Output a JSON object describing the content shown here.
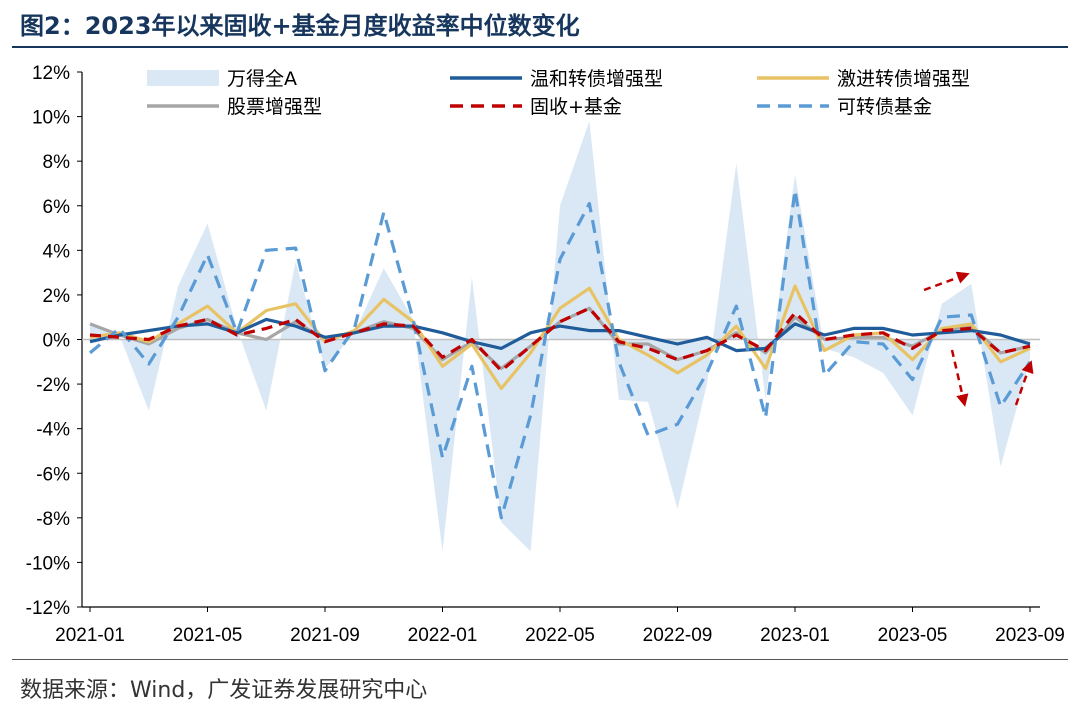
{
  "title": "图2：2023年以来固收+基金月度收益率中位数变化",
  "source": "数据来源：Wind，广发证券发展研究中心",
  "chart_data": {
    "type": "line",
    "title": "图2：2023年以来固收+基金月度收益率中位数变化",
    "xlabel": "",
    "ylabel": "",
    "ylim": [
      -12,
      12
    ],
    "y_ticks": [
      12,
      10,
      8,
      6,
      4,
      2,
      0,
      -2,
      -4,
      -6,
      -8,
      -10,
      -12
    ],
    "y_tick_labels": [
      "12%",
      "10%",
      "8%",
      "6%",
      "4%",
      "2%",
      "0%",
      "-2%",
      "-4%",
      "-6%",
      "-8%",
      "-10%",
      "-12%"
    ],
    "x": [
      "2021-01",
      "2021-02",
      "2021-03",
      "2021-04",
      "2021-05",
      "2021-06",
      "2021-07",
      "2021-08",
      "2021-09",
      "2021-10",
      "2021-11",
      "2021-12",
      "2022-01",
      "2022-02",
      "2022-03",
      "2022-04",
      "2022-05",
      "2022-06",
      "2022-07",
      "2022-08",
      "2022-09",
      "2022-10",
      "2022-11",
      "2022-12",
      "2023-01",
      "2023-02",
      "2023-03",
      "2023-04",
      "2023-05",
      "2023-06",
      "2023-07",
      "2023-08",
      "2023-09"
    ],
    "x_tick_labels": [
      "2021-01",
      "2021-05",
      "2021-09",
      "2022-01",
      "2022-05",
      "2022-09",
      "2023-01",
      "2023-05",
      "2023-09"
    ],
    "grid": false,
    "legend_position": "top",
    "series": [
      {
        "name": "万得全A",
        "style": "area",
        "color": "#dae8f5",
        "values": [
          0.7,
          0.2,
          -3.2,
          2.4,
          5.2,
          0.5,
          -3.2,
          3.5,
          -1.3,
          0.3,
          3.2,
          0.9,
          -9.5,
          2.8,
          -8.2,
          -9.5,
          6.0,
          9.8,
          -2.7,
          -2.8,
          -7.6,
          -2.0,
          7.9,
          -2.7,
          7.4,
          -0.4,
          -0.8,
          -1.5,
          -3.4,
          1.6,
          2.5,
          -5.7,
          -0.9
        ]
      },
      {
        "name": "温和转债增强型",
        "style": "solid",
        "color": "#1f5c99",
        "values": [
          -0.1,
          0.2,
          0.4,
          0.6,
          0.7,
          0.3,
          0.9,
          0.6,
          0.1,
          0.3,
          0.6,
          0.6,
          0.3,
          -0.1,
          -0.4,
          0.3,
          0.6,
          0.4,
          0.4,
          0.1,
          -0.2,
          0.1,
          -0.5,
          -0.4,
          0.7,
          0.2,
          0.5,
          0.5,
          0.2,
          0.3,
          0.4,
          0.2,
          -0.2
        ]
      },
      {
        "name": "激进转债增强型",
        "style": "solid",
        "color": "#e8c365",
        "values": [
          0.1,
          0.3,
          -0.1,
          0.7,
          1.5,
          0.3,
          1.3,
          1.6,
          -0.1,
          0.4,
          1.8,
          0.8,
          -1.2,
          -0.2,
          -2.2,
          -0.6,
          1.4,
          2.3,
          0.0,
          -0.7,
          -1.5,
          -0.7,
          0.6,
          -1.3,
          2.4,
          -0.5,
          0.2,
          0.3,
          -0.9,
          0.5,
          0.7,
          -1.0,
          -0.4
        ]
      },
      {
        "name": "股票增强型",
        "style": "solid",
        "color": "#a6a6a6",
        "values": [
          0.7,
          0.2,
          -0.2,
          0.5,
          0.9,
          0.3,
          0.0,
          0.8,
          0.0,
          0.3,
          0.8,
          0.5,
          -0.9,
          -0.1,
          -1.3,
          -0.3,
          0.8,
          1.4,
          -0.2,
          -0.2,
          -0.9,
          -0.5,
          0.3,
          -0.6,
          1.0,
          0.0,
          0.1,
          0.1,
          -0.3,
          0.4,
          0.6,
          -0.6,
          -0.3
        ]
      },
      {
        "name": "固收+基金",
        "style": "dashed",
        "color": "#c00000",
        "values": [
          0.2,
          0.1,
          0.0,
          0.6,
          0.9,
          0.2,
          0.5,
          0.9,
          -0.1,
          0.3,
          0.7,
          0.6,
          -0.8,
          0.0,
          -1.4,
          -0.3,
          0.8,
          1.4,
          -0.1,
          -0.4,
          -0.9,
          -0.5,
          0.2,
          -0.5,
          1.2,
          0.0,
          0.2,
          0.3,
          -0.4,
          0.4,
          0.5,
          -0.6,
          -0.3
        ]
      },
      {
        "name": "可转债基金",
        "style": "dashed",
        "color": "#5b9bd5",
        "values": [
          -0.6,
          0.5,
          -1.1,
          1.0,
          3.8,
          0.3,
          4.0,
          4.1,
          -1.4,
          0.5,
          5.7,
          0.9,
          -5.3,
          -1.2,
          -8.0,
          -3.4,
          3.6,
          6.1,
          -1.0,
          -4.3,
          -3.8,
          -1.5,
          1.5,
          -3.5,
          6.7,
          -1.6,
          -0.1,
          -0.2,
          -1.8,
          1.0,
          1.1,
          -3.0,
          -1.0
        ]
      }
    ],
    "annotations": [
      {
        "type": "arrow",
        "direction": "up-right",
        "color": "#c00000"
      },
      {
        "type": "arrow",
        "direction": "down",
        "color": "#c00000"
      },
      {
        "type": "arrow",
        "direction": "up",
        "color": "#c00000"
      }
    ]
  }
}
